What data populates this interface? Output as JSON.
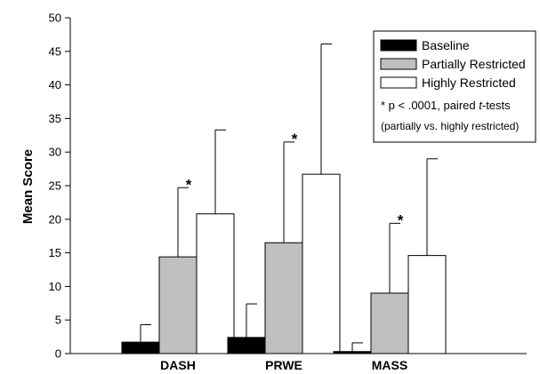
{
  "chart_data": {
    "type": "bar",
    "ylabel": "Mean Score",
    "xlabel": "",
    "title": "",
    "ylim": [
      0,
      50
    ],
    "yticks": [
      0,
      5,
      10,
      15,
      20,
      25,
      30,
      35,
      40,
      45,
      50
    ],
    "categories": [
      "DASH",
      "PRWE",
      "MASS"
    ],
    "series": [
      {
        "name": "Baseline",
        "values": [
          1.7,
          2.4,
          0.3
        ],
        "errors": [
          2.6,
          5.0,
          1.3
        ],
        "color": "#000000"
      },
      {
        "name": "Partially Restricted",
        "values": [
          14.4,
          16.5,
          9.0
        ],
        "errors": [
          10.3,
          15.0,
          10.4
        ],
        "color": "#bfbfbf"
      },
      {
        "name": "Highly Restricted",
        "values": [
          20.8,
          26.7,
          14.6
        ],
        "errors": [
          12.5,
          19.4,
          14.4
        ],
        "color": "#ffffff"
      }
    ],
    "significance_markers": [
      "*",
      "*",
      "*"
    ],
    "legend": {
      "position": "top-right",
      "note_prefix": "* p < .0001, paired ",
      "note_italic": "t",
      "note_suffix": "-tests",
      "note_line2": "(partially vs. highly restricted)"
    },
    "grid": false
  }
}
